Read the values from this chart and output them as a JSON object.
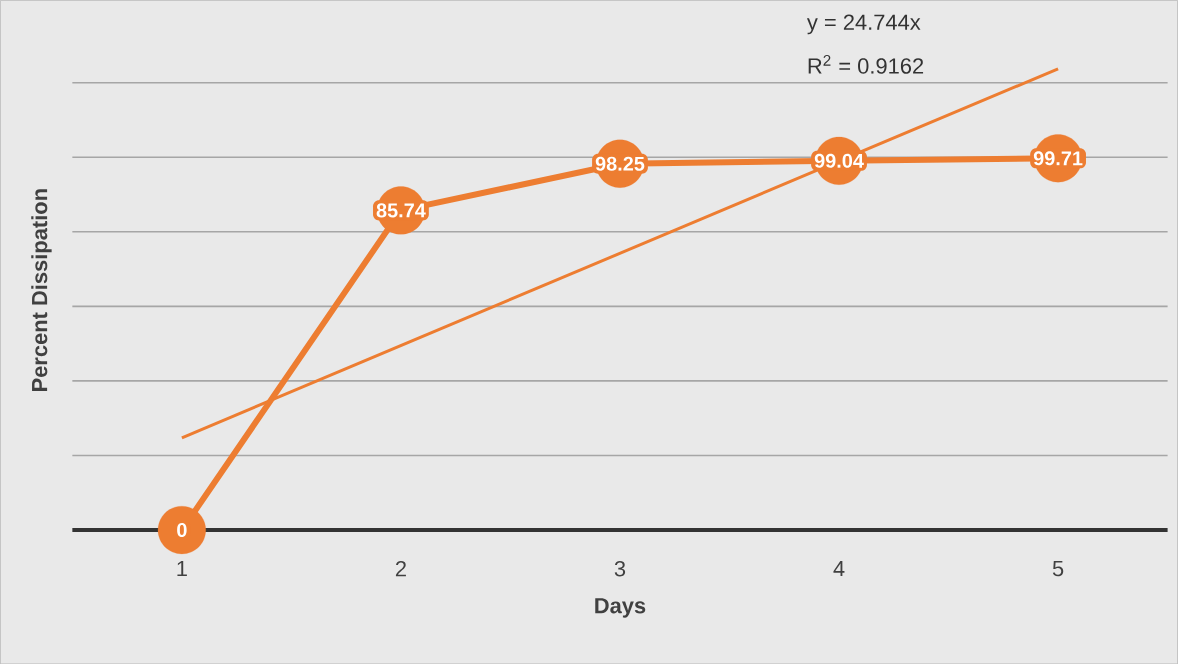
{
  "chart_data": {
    "type": "line",
    "xlabel": "Days",
    "ylabel": "Percent Dissipation",
    "x": [
      1,
      2,
      3,
      4,
      5
    ],
    "xlim": [
      0.5,
      5.5
    ],
    "xticks": [
      1,
      2,
      3,
      4,
      5
    ],
    "yticks": [
      {
        "value": 20,
        "label": null
      },
      {
        "value": 40,
        "label": null
      },
      {
        "value": 60,
        "label": null
      },
      {
        "value": 80,
        "label": null
      },
      {
        "value": 100,
        "label": null
      },
      {
        "value": 120,
        "label": null
      }
    ],
    "tick_labels": "x",
    "grid": "y",
    "series": [
      {
        "color": "#ed7d31",
        "values": [
          0,
          85.74,
          98.25,
          99.04,
          99.71
        ],
        "marker": "circle",
        "data_labels": true
      },
      {
        "color": "#ed7d31",
        "x": [
          1,
          5
        ],
        "values": [
          24.744,
          123.72
        ],
        "marker": "none"
      }
    ],
    "annotations": [
      "y = 24.744x",
      "R$^{2}$ = 0.9162"
    ]
  }
}
